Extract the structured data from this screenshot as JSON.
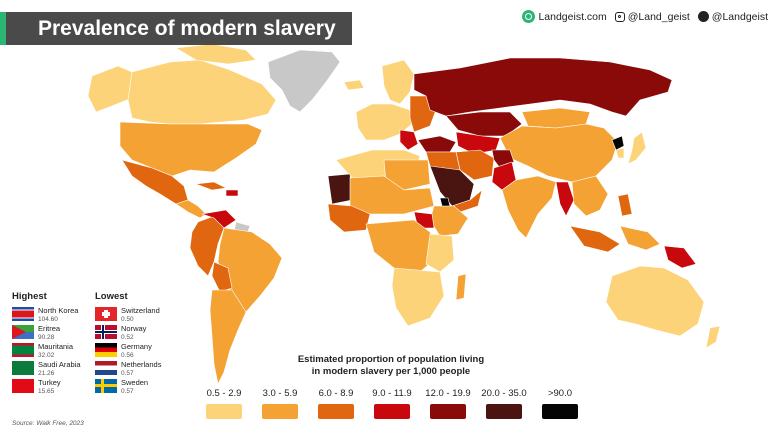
{
  "title": "Prevalence of modern slavery",
  "brand": {
    "site": "Landgeist.com",
    "instagram": "@Land_geist",
    "twitter": "@Landgeist"
  },
  "legend": {
    "title_line1": "Estimated proportion of population living",
    "title_line2": "in modern slavery per 1,000 people",
    "classes": [
      {
        "label": "0.5 - 2.9",
        "color": "#fdd37a"
      },
      {
        "label": "3.0 - 5.9",
        "color": "#f4a233"
      },
      {
        "label": "6.0 - 8.9",
        "color": "#e0670f"
      },
      {
        "label": "9.0 - 11.9",
        "color": "#c8080c"
      },
      {
        "label": "12.0 - 19.9",
        "color": "#8a0a0a"
      },
      {
        "label": "20.0 - 35.0",
        "color": "#4a1410"
      },
      {
        "label": ">90.0",
        "color": "#050505"
      }
    ]
  },
  "no_data_color": "#c8c8c8",
  "highest": {
    "heading": "Highest",
    "items": [
      {
        "country": "North Korea",
        "value": "104.60"
      },
      {
        "country": "Eritrea",
        "value": "90.28"
      },
      {
        "country": "Mauritania",
        "value": "32.02"
      },
      {
        "country": "Saudi Arabia",
        "value": "21.26"
      },
      {
        "country": "Turkey",
        "value": "15.65"
      }
    ]
  },
  "lowest": {
    "heading": "Lowest",
    "items": [
      {
        "country": "Switzerland",
        "value": "0.50"
      },
      {
        "country": "Norway",
        "value": "0.52"
      },
      {
        "country": "Germany",
        "value": "0.56"
      },
      {
        "country": "Netherlands",
        "value": "0.57"
      },
      {
        "country": "Sweden",
        "value": "0.57"
      }
    ]
  },
  "source": "Source: Walk Free, 2023"
}
